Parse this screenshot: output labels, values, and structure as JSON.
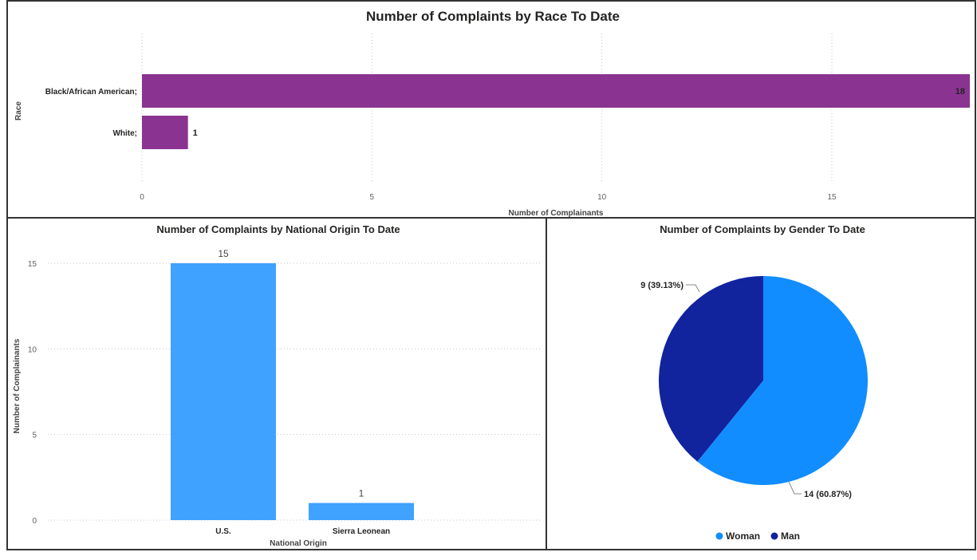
{
  "chart_data": [
    {
      "type": "bar",
      "orientation": "horizontal",
      "title": "Number of Complaints by Race To Date",
      "xlabel": "Number of Complainants",
      "ylabel": "Race",
      "categories": [
        "Black/African American;",
        "White;"
      ],
      "values": [
        18,
        1
      ],
      "xlim": [
        0,
        18
      ],
      "xticks": [
        0,
        5,
        10,
        15
      ],
      "grid": true,
      "color": "#8A3391"
    },
    {
      "type": "bar",
      "orientation": "vertical",
      "title": "Number of Complaints by National Origin To Date",
      "xlabel": "National Origin",
      "ylabel": "Number of Complainants",
      "categories": [
        "U.S.",
        "Sierra Leonean"
      ],
      "values": [
        15,
        1
      ],
      "ylim": [
        0,
        15
      ],
      "yticks": [
        0,
        5,
        10,
        15
      ],
      "grid": true,
      "color": "#3FA2FF"
    },
    {
      "type": "pie",
      "title": "Number of Complaints by Gender To Date",
      "slices": [
        {
          "name": "Woman",
          "value": 14,
          "label": "14 (60.87%)",
          "color": "#118DFF"
        },
        {
          "name": "Man",
          "value": 9,
          "label": "9 (39.13%)",
          "color": "#12239E"
        }
      ],
      "legend": "bottom-center"
    }
  ]
}
